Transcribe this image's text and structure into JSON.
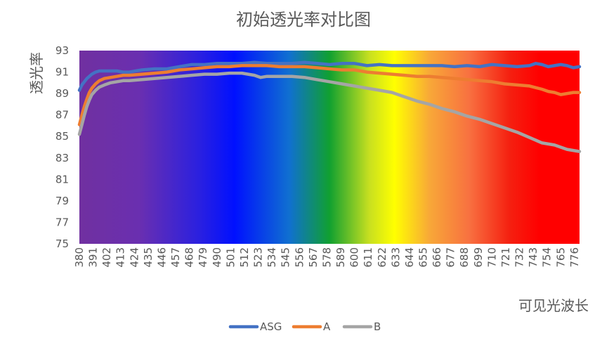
{
  "chart_data": {
    "type": "line",
    "title": "初始透光率对比图",
    "xlabel": "可见光波长",
    "ylabel": "透光率",
    "ylim": [
      75,
      93
    ],
    "yticks": [
      "75",
      "77",
      "79",
      "81",
      "83",
      "85",
      "87",
      "89",
      "91",
      "93"
    ],
    "xlim": [
      380,
      780
    ],
    "xticks": [
      "380",
      "391",
      "402",
      "413",
      "424",
      "435",
      "446",
      "457",
      "468",
      "479",
      "490",
      "501",
      "512",
      "523",
      "534",
      "545",
      "556",
      "567",
      "578",
      "589",
      "600",
      "611",
      "622",
      "633",
      "644",
      "655",
      "666",
      "677",
      "688",
      "699",
      "710",
      "721",
      "732",
      "743",
      "754",
      "765",
      "776"
    ],
    "grid": false,
    "legend_position": "bottom",
    "background": "visible-spectrum gradient",
    "series": [
      {
        "name": "ASG",
        "color": "#4472C4",
        "x": [
          380,
          382,
          384,
          386,
          388,
          390,
          393,
          396,
          400,
          405,
          410,
          415,
          420,
          425,
          430,
          440,
          450,
          460,
          470,
          480,
          490,
          500,
          510,
          520,
          530,
          540,
          550,
          560,
          570,
          580,
          590,
          600,
          610,
          620,
          630,
          640,
          650,
          660,
          670,
          680,
          690,
          700,
          710,
          720,
          730,
          740,
          745,
          750,
          755,
          760,
          765,
          770,
          775,
          780
        ],
        "values": [
          89.3,
          89.8,
          90.1,
          90.4,
          90.6,
          90.8,
          91.0,
          91.1,
          91.1,
          91.1,
          91.1,
          91.0,
          91.0,
          91.1,
          91.2,
          91.3,
          91.3,
          91.5,
          91.7,
          91.7,
          91.8,
          91.8,
          91.8,
          91.9,
          91.8,
          91.8,
          91.8,
          91.9,
          91.8,
          91.7,
          91.8,
          91.8,
          91.6,
          91.7,
          91.6,
          91.6,
          91.6,
          91.6,
          91.6,
          91.5,
          91.6,
          91.5,
          91.7,
          91.6,
          91.5,
          91.6,
          91.8,
          91.7,
          91.5,
          91.6,
          91.7,
          91.6,
          91.4,
          91.5
        ]
      },
      {
        "name": "A",
        "color": "#ED7D31",
        "x": [
          380,
          382,
          384,
          386,
          388,
          390,
          393,
          396,
          400,
          405,
          410,
          415,
          420,
          430,
          440,
          450,
          460,
          470,
          480,
          490,
          500,
          510,
          520,
          530,
          540,
          550,
          560,
          570,
          580,
          590,
          600,
          610,
          620,
          630,
          640,
          650,
          660,
          670,
          680,
          690,
          700,
          710,
          720,
          730,
          740,
          750,
          755,
          760,
          765,
          770,
          775,
          780
        ],
        "values": [
          86.1,
          87.0,
          87.8,
          88.5,
          89.1,
          89.5,
          89.9,
          90.2,
          90.4,
          90.5,
          90.6,
          90.7,
          90.7,
          90.8,
          90.9,
          91.0,
          91.2,
          91.3,
          91.4,
          91.5,
          91.5,
          91.6,
          91.6,
          91.6,
          91.5,
          91.5,
          91.5,
          91.4,
          91.3,
          91.2,
          91.2,
          91.0,
          90.9,
          90.8,
          90.7,
          90.6,
          90.6,
          90.5,
          90.4,
          90.3,
          90.2,
          90.1,
          89.9,
          89.8,
          89.7,
          89.4,
          89.2,
          89.1,
          88.9,
          89.0,
          89.1,
          89.1
        ]
      },
      {
        "name": "B",
        "color": "#A5A5A5",
        "x": [
          380,
          382,
          384,
          386,
          388,
          390,
          393,
          396,
          400,
          405,
          410,
          415,
          420,
          430,
          440,
          450,
          460,
          470,
          480,
          490,
          500,
          510,
          520,
          525,
          530,
          540,
          550,
          560,
          570,
          580,
          590,
          600,
          610,
          620,
          630,
          640,
          650,
          660,
          670,
          680,
          690,
          700,
          710,
          720,
          730,
          740,
          750,
          760,
          765,
          770,
          775,
          780
        ],
        "values": [
          85.2,
          86.1,
          87.0,
          87.8,
          88.4,
          88.9,
          89.3,
          89.6,
          89.8,
          90.0,
          90.1,
          90.2,
          90.2,
          90.3,
          90.4,
          90.5,
          90.6,
          90.7,
          90.8,
          90.8,
          90.9,
          90.9,
          90.7,
          90.5,
          90.6,
          90.6,
          90.6,
          90.5,
          90.3,
          90.1,
          89.9,
          89.7,
          89.5,
          89.3,
          89.1,
          88.7,
          88.3,
          88.0,
          87.6,
          87.3,
          86.9,
          86.6,
          86.2,
          85.8,
          85.4,
          84.9,
          84.4,
          84.2,
          84.0,
          83.8,
          83.7,
          83.6
        ]
      }
    ]
  }
}
